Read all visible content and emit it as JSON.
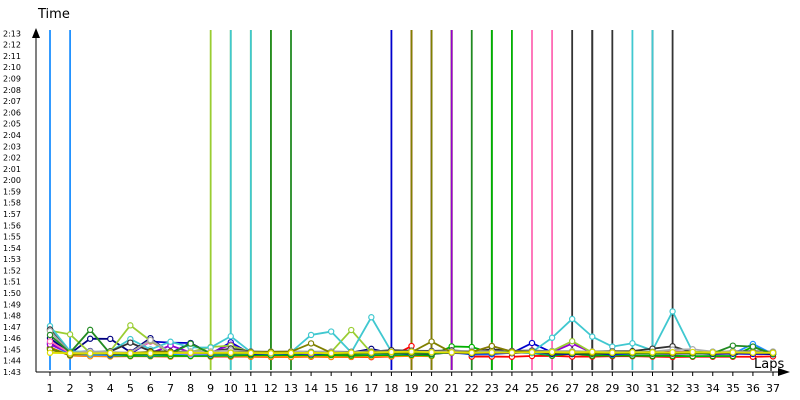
{
  "chart_data": {
    "type": "line",
    "title": "",
    "xlabel": "Laps",
    "ylabel": "Time",
    "x": [
      1,
      2,
      3,
      4,
      5,
      6,
      7,
      8,
      9,
      10,
      11,
      12,
      13,
      14,
      15,
      16,
      17,
      18,
      19,
      20,
      21,
      22,
      23,
      24,
      25,
      26,
      27,
      28,
      29,
      30,
      31,
      32,
      33,
      34,
      35,
      36,
      37
    ],
    "xlim": [
      1,
      37
    ],
    "ylim_seconds": [
      6180,
      7998
    ],
    "ytick_labels": [
      "1:43",
      "1:44",
      "1:45",
      "1:46",
      "1:47",
      "1:48",
      "1:49",
      "1:50",
      "1:51",
      "1:52",
      "1:53",
      "1:54",
      "1:55",
      "1:56",
      "1:57",
      "1:58",
      "1:59",
      "2:00",
      "2:01",
      "2:02",
      "2:03",
      "2:04",
      "2:05",
      "2:06",
      "2:07",
      "2:08",
      "2:09",
      "2:10",
      "2:11",
      "2:12",
      "2:13"
    ],
    "grid": false,
    "legend": "none",
    "y_unit": "seconds",
    "series": [
      {
        "color": "#ff0000",
        "values": [
          6311,
          6267,
          6265,
          6263,
          6264,
          6264,
          6262,
          6289,
          6262,
          6262,
          6261,
          6260,
          6260,
          6261,
          6260,
          6260,
          6259,
          6262,
          6318,
          null,
          null,
          6262,
          6262,
          6261,
          6265,
          6266,
          6262,
          6262,
          6264,
          6264,
          6262,
          6260,
          6261,
          6261,
          6261,
          6261,
          6263
        ]
      },
      {
        "color": "#ff8c00",
        "values": [
          6307,
          6268,
          6264,
          6264,
          6265,
          6264,
          6263,
          6264,
          6264,
          6264,
          6262,
          6261,
          6260,
          6262,
          6260,
          6261,
          6262,
          6263,
          6265,
          6264,
          null,
          null,
          null,
          null,
          null,
          null,
          null,
          null,
          null,
          null,
          null,
          null,
          null,
          null,
          null,
          null,
          null
        ]
      },
      {
        "color": "#00b000",
        "values": [
          6304,
          6270,
          6291,
          6268,
          6266,
          6266,
          6266,
          6265,
          6266,
          6267,
          6269,
          6269,
          6270,
          6269,
          6270,
          6267,
          6270,
          6270,
          6271,
          6268,
          6316,
          6313,
          6281,
          6285,
          6281,
          6267,
          6278,
          6267,
          6268,
          6267,
          6266,
          6266,
          6264,
          6265,
          6265,
          6314,
          6274
        ]
      },
      {
        "color": "#1e90ff",
        "values": [
          6328,
          6275,
          6272,
          6270,
          6276,
          6270,
          6276,
          6274,
          6273,
          6274,
          6276,
          6278,
          6277,
          6276,
          6278,
          6276,
          6275,
          6275,
          6277,
          6279,
          6285,
          6273,
          6274,
          6283,
          6282,
          6276,
          6275,
          6286,
          6273,
          6278,
          6290,
          6279,
          6283,
          6281,
          6277,
          6329,
          6275
        ]
      },
      {
        "color": "#0000cd",
        "values": [
          6335,
          6283,
          6291,
          6274,
          6277,
          6342,
          6336,
          6334,
          6276,
          6338,
          6276,
          6280,
          6278,
          6277,
          6278,
          6278,
          6279,
          6279,
          6280,
          6280,
          6281,
          6278,
          6279,
          6281,
          6334,
          6284,
          6278,
          6277,
          6276,
          6279,
          6281,
          6278,
          6280,
          6276,
          6278,
          6276,
          6275
        ]
      },
      {
        "color": "#000080",
        "values": [
          6360,
          6278,
          6357,
          6356,
          6286,
          6360,
          6280,
          6334,
          6278,
          6282,
          6277,
          6285,
          6279,
          6280,
          6283,
          6283,
          6303,
          6279,
          6278,
          6276,
          6284,
          6278,
          6291,
          6280,
          6287,
          6277,
          6276,
          6277,
          6279,
          6280,
          6277,
          6278,
          6279,
          6277,
          6280,
          6281,
          6276
        ]
      },
      {
        "color": "#9400d3",
        "values": [
          6326,
          6284,
          6289,
          6279,
          6283,
          6280,
          6321,
          6284,
          6282,
          6325,
          6282,
          6281,
          6283,
          6286,
          6280,
          6284,
          6285,
          6285,
          6287,
          6284,
          6285,
          6287,
          6286,
          6283,
          6287,
          6285,
          6331,
          6283,
          6288,
          6282,
          6285,
          6289,
          6286,
          6282,
          6284,
          6286,
          6283
        ]
      },
      {
        "color": "#ff69b4",
        "values": [
          6343,
          6281,
          6283,
          6280,
          6284,
          6342,
          6282,
          6278,
          6279,
          6280,
          6280,
          6285,
          6282,
          6279,
          6283,
          6283,
          6281,
          6287,
          6279,
          6280,
          6283,
          6285,
          6319,
          6287,
          6286,
          6289,
          6285,
          6288,
          6282,
          6281,
          6285,
          6283,
          6283,
          6282,
          6283,
          6288,
          6284
        ]
      },
      {
        "color": "#9acd32",
        "values": [
          6400,
          6380,
          6281,
          6291,
          6428,
          6346,
          6280,
          6286,
          6313,
          6320,
          6286,
          6285,
          6286,
          6284,
          6286,
          6403,
          6282,
          6283,
          6280,
          6281,
          6284,
          6287,
          6289,
          6291,
          6289,
          6292,
          6344,
          6283,
          6284,
          6286,
          6285,
          6283,
          6283,
          6281,
          6287,
          6286,
          6284
        ]
      },
      {
        "color": "#40c8d0",
        "values": [
          6424,
          6290,
          6287,
          6289,
          6355,
          6300,
          6341,
          6311,
          6310,
          6370,
          6286,
          6287,
          6285,
          6377,
          6395,
          6284,
          6471,
          6288,
          6285,
          6289,
          6290,
          6292,
          6291,
          6286,
          6286,
          6362,
          6462,
          6368,
          6315,
          6333,
          6295,
          6502,
          6287,
          6288,
          6288,
          6286,
          6287
        ]
      },
      {
        "color": "#333333",
        "values": [
          6406,
          6280,
          6286,
          6289,
          6336,
          6291,
          6289,
          6287,
          6286,
          6305,
          6289,
          6287,
          6288,
          6287,
          6288,
          6287,
          6288,
          6296,
          6293,
          6292,
          6295,
          6289,
          6300,
          6292,
          6294,
          6290,
          6290,
          6289,
          6290,
          6291,
          6304,
          6317,
          6284,
          6287,
          6291,
          6290,
          6288
        ]
      },
      {
        "color": "#a9a9a9",
        "values": [
          6398,
          6283,
          6289,
          6286,
          6283,
          6350,
          6285,
          6290,
          6289,
          6295,
          6287,
          6289,
          6290,
          6288,
          6287,
          6285,
          6290,
          6288,
          6289,
          6288,
          6290,
          6292,
          6289,
          6289,
          6290,
          6290,
          6291,
          6289,
          6287,
          6285,
          6288,
          6299,
          6301,
          6288,
          6290,
          6287,
          6288
        ]
      },
      {
        "color": "#228b22",
        "values": [
          6377,
          6283,
          6404,
          6277,
          6275,
          6273,
          6276,
          6331,
          6278,
          6276,
          6278,
          6288,
          6277,
          6284,
          6276,
          6275,
          6278,
          6276,
          6282,
          6277,
          6284,
          6282,
          6283,
          6286,
          6285,
          6283,
          6279,
          6278,
          6281,
          6280,
          6278,
          6282,
          6279,
          6279,
          6320,
          6315,
          6276
        ]
      },
      {
        "color": "#808000",
        "values": [
          6299,
          6272,
          6279,
          6277,
          6281,
          6287,
          6286,
          6282,
          6280,
          6283,
          6285,
          6287,
          6288,
          6332,
          6282,
          6281,
          6286,
          6285,
          6285,
          6342,
          6284,
          6286,
          6318,
          6288,
          6287,
          6283,
          6285,
          6281,
          6284,
          6283,
          6286,
          6280,
          6283,
          6283,
          6283,
          6284,
          6283
        ]
      },
      {
        "color": "#dede00",
        "values": [
          6282,
          6280,
          6279,
          6281,
          6280,
          6280,
          6281,
          6282,
          6282,
          6282,
          6281,
          6280,
          6281,
          6282,
          6280,
          6283,
          6283,
          6286,
          6288,
          6285,
          6284,
          6282,
          6284,
          6283,
          6285,
          6286,
          6284,
          6287,
          6283,
          6285,
          6284,
          6285,
          6286,
          6284,
          6284,
          6282,
          6282
        ]
      }
    ],
    "offscreen_high_spikes": [
      {
        "color": "#1e90ff",
        "x": [
          1,
          2
        ]
      },
      {
        "color": "#9acd32",
        "x": [
          9,
          10
        ]
      },
      {
        "color": "#9acd32",
        "x": [
          11,
          12
        ]
      },
      {
        "color": "#40c8d0",
        "x": [
          10,
          11
        ]
      },
      {
        "color": "#228b22",
        "x": [
          12,
          13
        ]
      },
      {
        "color": "#0000cd",
        "x": [
          18,
          19
        ]
      },
      {
        "color": "#ff0000",
        "x": [
          19,
          20,
          21
        ]
      },
      {
        "color": "#ff8c00",
        "x": [
          20,
          21
        ]
      },
      {
        "color": "#dede00",
        "x": [
          20,
          21
        ]
      },
      {
        "color": "#00b000",
        "x": [
          20,
          21
        ]
      },
      {
        "color": "#9400d3",
        "x": [
          20,
          21
        ]
      },
      {
        "color": "#808000",
        "x": [
          19,
          20
        ]
      },
      {
        "color": "#228b22",
        "x": [
          22,
          23
        ]
      },
      {
        "color": "#00b000",
        "x": [
          23,
          24
        ]
      },
      {
        "color": "#ff69b4",
        "x": [
          25,
          26
        ]
      },
      {
        "color": "#333333",
        "x": [
          27,
          28
        ]
      },
      {
        "color": "#333333",
        "x": [
          28,
          29
        ]
      },
      {
        "color": "#333333",
        "x": [
          31,
          32
        ]
      },
      {
        "color": "#40c8d0",
        "x": [
          30,
          31
        ]
      }
    ]
  }
}
